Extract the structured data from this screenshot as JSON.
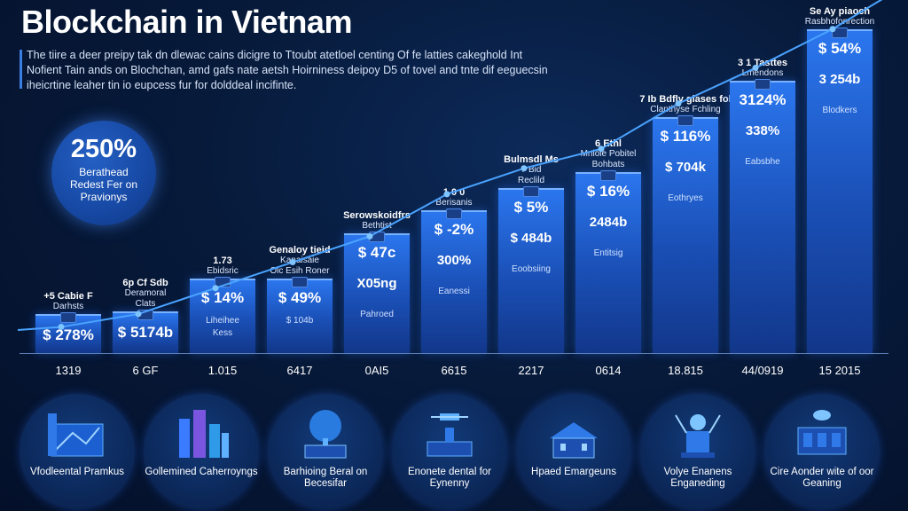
{
  "header": {
    "title": "Blockchain in Vietnam",
    "description": "The tiire a deer preipy tak dn dlewac cains dicigre to Ttoubt atetloel centing Of fe latties cakeghold Int Nofient Tain ands on Blochchan, amd gafs nate aetsh Hoirniness deipoy D5 of tovel and tnte dif eeguecsin iheicrtine leaher tin io eupcess fur for dolddeal incifinte."
  },
  "badge": {
    "value": "250%",
    "text": "Berathead Redest Fer on Pravionys"
  },
  "chart_data": {
    "type": "bar",
    "title": "",
    "xlabel": "",
    "ylabel": "",
    "categories": [
      "1319",
      "6 GF",
      "1.015",
      "6417",
      "0AI5",
      "6615",
      "2217",
      "0614",
      "18.815",
      "44/0919",
      "15 2015"
    ],
    "bar_levels": [
      0.12,
      0.13,
      0.23,
      0.23,
      0.37,
      0.44,
      0.51,
      0.56,
      0.73,
      0.84,
      1.0
    ],
    "trend_levels": [
      0.13,
      0.17,
      0.25,
      0.33,
      0.41,
      0.54,
      0.62,
      0.68,
      0.82,
      0.93,
      1.05
    ],
    "grid": false,
    "legend": "none"
  },
  "bars": [
    {
      "top": "+5 Cabie F",
      "top2": "Darhsts",
      "value": "$ 278%"
    },
    {
      "top": "6p Cf Sdb",
      "top2": "Deramoral",
      "top3": "Clats",
      "value": "$ 5174b"
    },
    {
      "top": "1.73",
      "top2": "Ebidsric",
      "value": "$ 14%",
      "sub": "Liheihee",
      "sub2": "Kess"
    },
    {
      "top": "Genaloy tieid",
      "top2": "Kanaisaie",
      "top3": "Olc Esih Roner",
      "value": "$ 49%",
      "sub": "$ 104b"
    },
    {
      "top": "Serowskoidfrs",
      "top2": "Bethtist",
      "value": "$ 47c",
      "value2": "X05ng",
      "sub": "Pahroed"
    },
    {
      "top": "1 0 0",
      "top2": "Berisanis",
      "value": "$ -2%",
      "value2": "300%",
      "sub": "Eanessi"
    },
    {
      "top": "Bulmsdl Ms",
      "top2": "7 Bid",
      "top3": "Reclild",
      "value": "$ 5%",
      "value2": "$ 484b",
      "sub": "Eoobsiing"
    },
    {
      "top": "6 Ethl",
      "top2": "Mnioie Pobitel",
      "top3": "Bohbats",
      "value": "$ 16%",
      "value2": "2484b",
      "sub": "Entitsig"
    },
    {
      "top": "7 Ib Bdfly glases fol",
      "top2": "Clanthyse Fchling",
      "value": "$ 116%",
      "value2": "$ 704k",
      "sub": "Eothryes"
    },
    {
      "top": "3 1 Tasttes",
      "top2": "Lmendons",
      "value": "3124%",
      "value2": "338%",
      "sub": "Eabsbhe"
    },
    {
      "top": "Se Ay piaoch",
      "top2": "Rasbhofonrection",
      "value": "$ 54%",
      "value2": "3 254b",
      "sub": "Blodkers"
    }
  ],
  "sectors": [
    {
      "label": "Vfodleental Pramkus",
      "icon": "city-network-icon"
    },
    {
      "label": "Gollemined Caherroyngs",
      "icon": "skyscraper-icon"
    },
    {
      "label": "Barhioing Beral on Becesifar",
      "icon": "tree-house-icon"
    },
    {
      "label": "Enonete dental for Eynenny",
      "icon": "drone-icon"
    },
    {
      "label": "Hpaed Emargeuns",
      "icon": "buildings-icon"
    },
    {
      "label": "Volye Enanens Enganeding",
      "icon": "robot-icon"
    },
    {
      "label": "Cire Aonder wite of oor Geaning",
      "icon": "server-icon"
    }
  ],
  "colors": {
    "bar": "#1a4fb5",
    "accent": "#3b7de0",
    "trend": "#4aa3ff",
    "background": "#071a3a"
  }
}
